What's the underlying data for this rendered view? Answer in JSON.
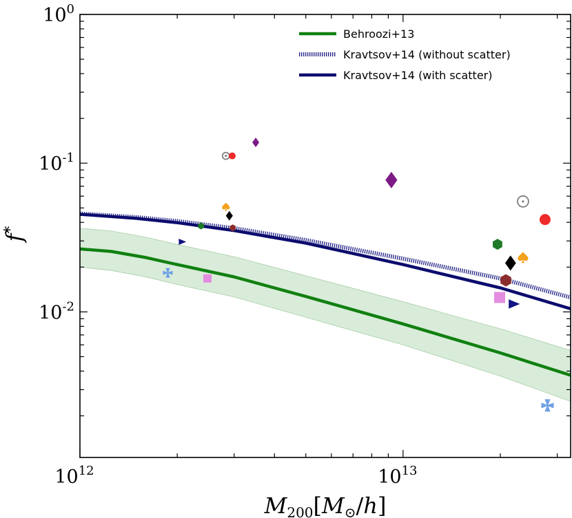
{
  "chart_data": {
    "type": "scatter",
    "title": "",
    "xlabel": "M₂₀₀[M⊙/h]",
    "ylabel": "f*",
    "xscale": "log",
    "yscale": "log",
    "xlim": [
      1000000000000.0,
      33000000000000.0
    ],
    "ylim": [
      0.00105,
      1.0
    ],
    "x_ticks": [
      {
        "value": 1000000000000.0,
        "base": "10",
        "exp": "12"
      },
      {
        "value": 10000000000000.0,
        "base": "10",
        "exp": "13"
      }
    ],
    "y_ticks": [
      {
        "value": 1.0,
        "base": "10",
        "exp": "0"
      },
      {
        "value": 0.1,
        "base": "10",
        "exp": "-1"
      },
      {
        "value": 0.01,
        "base": "10",
        "exp": "-2"
      }
    ],
    "legend_position": "top-right",
    "lines": [
      {
        "name": "Behroozi+13",
        "color": "#118011",
        "style": "solid",
        "x": [
          1000000000000.0,
          1250000000000.0,
          1600000000000.0,
          2000000000000.0,
          3000000000000.0,
          5000000000000.0,
          10000000000000.0,
          20000000000000.0,
          33000000000000.0
        ],
        "y": [
          0.0265,
          0.0255,
          0.0232,
          0.0208,
          0.0172,
          0.0127,
          0.0083,
          0.0053,
          0.00375
        ],
        "band_lower": [
          0.02,
          0.019,
          0.0172,
          0.0153,
          0.0126,
          0.0092,
          0.006,
          0.0037,
          0.0025
        ],
        "band_upper": [
          0.0365,
          0.035,
          0.0318,
          0.0284,
          0.0235,
          0.0175,
          0.0117,
          0.0077,
          0.0055
        ],
        "band_color": "#d9ecd9"
      },
      {
        "name": "Kravtsov+14 (without scatter)",
        "color": "#2a2a8a",
        "style": "dotted",
        "x": [
          1000000000000.0,
          1500000000000.0,
          2000000000000.0,
          3000000000000.0,
          5000000000000.0,
          10000000000000.0,
          20000000000000.0,
          33000000000000.0
        ],
        "y": [
          0.0458,
          0.0433,
          0.0408,
          0.0365,
          0.0304,
          0.0228,
          0.0168,
          0.0125
        ]
      },
      {
        "name": "Kravtsov+14 (with scatter)",
        "color": "#0c0c6e",
        "style": "solid",
        "x": [
          1000000000000.0,
          1500000000000.0,
          2000000000000.0,
          3000000000000.0,
          5000000000000.0,
          10000000000000.0,
          20000000000000.0,
          33000000000000.0
        ],
        "y": [
          0.0453,
          0.0425,
          0.0398,
          0.0352,
          0.029,
          0.0208,
          0.0145,
          0.0105
        ]
      }
    ],
    "points": [
      {
        "x": 1870000000000.0,
        "y": 0.0183,
        "marker": "cross",
        "color": "#6ea0e6",
        "size": 7
      },
      {
        "x": 2480000000000.0,
        "y": 0.0168,
        "marker": "square",
        "color": "#e48de0",
        "size": 6
      },
      {
        "x": 2070000000000.0,
        "y": 0.0296,
        "marker": "triangle-right",
        "color": "#131385",
        "size": 6
      },
      {
        "x": 2370000000000.0,
        "y": 0.0378,
        "marker": "hexagon",
        "color": "#1f7a2a",
        "size": 5
      },
      {
        "x": 2970000000000.0,
        "y": 0.0367,
        "marker": "hexagon",
        "color": "#8b2d2d",
        "size": 5
      },
      {
        "x": 2900000000000.0,
        "y": 0.0443,
        "marker": "diamond",
        "color": "#000000",
        "size": 7
      },
      {
        "x": 2830000000000.0,
        "y": 0.0508,
        "marker": "spade",
        "color": "#f3a21f",
        "size": 6
      },
      {
        "x": 2830000000000.0,
        "y": 0.112,
        "marker": "circle-dot",
        "color": "#808080",
        "size": 5
      },
      {
        "x": 2960000000000.0,
        "y": 0.112,
        "marker": "circle",
        "color": "#ef2a2a",
        "size": 5
      },
      {
        "x": 3500000000000.0,
        "y": 0.138,
        "marker": "diamond",
        "color": "#7c1a86",
        "size": 7
      },
      {
        "x": 9200000000000.0,
        "y": 0.077,
        "marker": "diamond",
        "color": "#7c1a86",
        "size": 12
      },
      {
        "x": 23500000000000.0,
        "y": 0.0553,
        "marker": "circle-dot",
        "color": "#808080",
        "size": 8
      },
      {
        "x": 27500000000000.0,
        "y": 0.0418,
        "marker": "circle",
        "color": "#ef2a2a",
        "size": 8
      },
      {
        "x": 19600000000000.0,
        "y": 0.0285,
        "marker": "hexagon",
        "color": "#1f7a2a",
        "size": 8
      },
      {
        "x": 21500000000000.0,
        "y": 0.0213,
        "marker": "diamond",
        "color": "#000000",
        "size": 11
      },
      {
        "x": 23500000000000.0,
        "y": 0.0232,
        "marker": "spade",
        "color": "#f3a21f",
        "size": 8
      },
      {
        "x": 20800000000000.0,
        "y": 0.0163,
        "marker": "hexagon",
        "color": "#8b2d2d",
        "size": 9
      },
      {
        "x": 19900000000000.0,
        "y": 0.0125,
        "marker": "square",
        "color": "#e48de0",
        "size": 8
      },
      {
        "x": 22000000000000.0,
        "y": 0.0113,
        "marker": "triangle-right",
        "color": "#131385",
        "size": 9
      },
      {
        "x": 28000000000000.0,
        "y": 0.00235,
        "marker": "cross",
        "color": "#6ea0e6",
        "size": 9
      }
    ]
  }
}
